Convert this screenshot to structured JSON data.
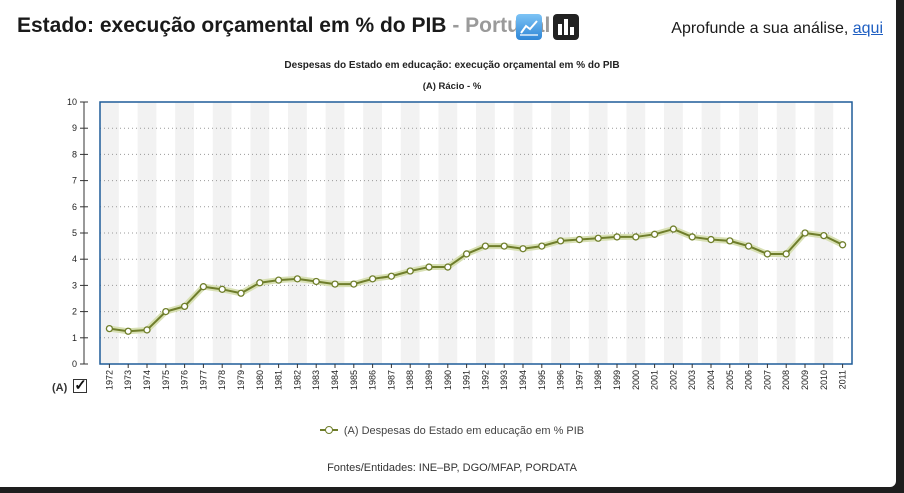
{
  "header": {
    "title": "Estado: execução orçamental em % do PIB",
    "separator": " - ",
    "country": "Portugal",
    "analysis_text": "Aprofunde a sua análise, ",
    "analysis_link": "aqui",
    "icons": [
      "line-chart-icon",
      "bar-chart-icon"
    ]
  },
  "series_toggle": {
    "label": "(A)",
    "checked": true
  },
  "legend": {
    "label": "(A) Despesas do Estado em educação em % PIB"
  },
  "source": "Fontes/Entidades: INE–BP, DGO/MFAP, PORDATA",
  "colors": {
    "line": "#6f7e2b",
    "line_glow": "#d8e0b4",
    "frame": "#1f5c99",
    "band": "#f2f2f2"
  },
  "chart_data": {
    "type": "line",
    "title": "Despesas do Estado em educação: execução orçamental em % do PIB",
    "subtitle": "(A) Rácio - %",
    "ylim": [
      0,
      10
    ],
    "yticks": [
      0,
      1,
      2,
      3,
      4,
      5,
      6,
      7,
      8,
      9,
      10
    ],
    "grid": true,
    "legend_position": "bottom",
    "x": [
      "1972",
      "1973",
      "1974",
      "1975",
      "1976",
      "1977",
      "1978",
      "1979",
      "1980",
      "1981",
      "1982",
      "1983",
      "1984",
      "1985",
      "1986",
      "1987",
      "1988",
      "1989",
      "1990",
      "1991",
      "1992",
      "1993",
      "1994",
      "1995",
      "1996",
      "1997",
      "1998",
      "1999",
      "2000",
      "2001",
      "2002",
      "2003",
      "2004",
      "2005",
      "2006",
      "2007",
      "2008",
      "2009",
      "2010",
      "2011"
    ],
    "series": [
      {
        "name": "(A) Despesas do Estado em educação em % PIB",
        "values": [
          1.35,
          1.25,
          1.3,
          2.0,
          2.2,
          2.95,
          2.85,
          2.7,
          3.1,
          3.2,
          3.25,
          3.15,
          3.05,
          3.05,
          3.25,
          3.35,
          3.55,
          3.7,
          3.7,
          4.2,
          4.5,
          4.5,
          4.4,
          4.5,
          4.7,
          4.75,
          4.8,
          4.85,
          4.85,
          4.95,
          5.15,
          4.85,
          4.75,
          4.7,
          4.5,
          4.2,
          4.2,
          5.0,
          4.9,
          4.55
        ]
      }
    ]
  }
}
